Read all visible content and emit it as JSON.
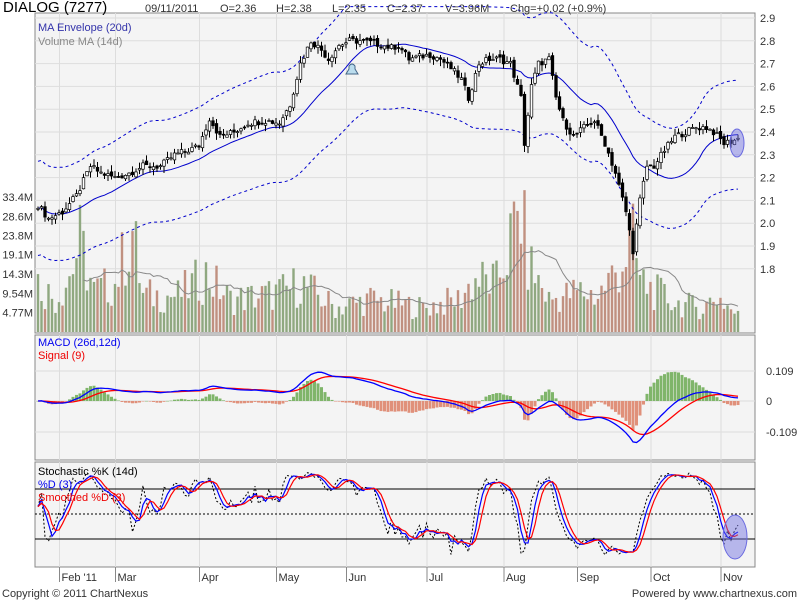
{
  "header": {
    "symbol": "DIALOG (7277)",
    "date": "09/11/2011",
    "open": "O=2.36",
    "high": "H=2.38",
    "low": "L=2.35",
    "close": "C=2.37",
    "volume": "V=3.96M",
    "change": "Chg=+0.02 (+0.9%)"
  },
  "footer": {
    "copyright": "Copyright © 2011 ChartNexus",
    "powered": "Powered by www.chartnexus.com"
  },
  "colors": {
    "up": "#ffffff",
    "down": "#000000",
    "ma": "#0000cc",
    "macd": "#0000ff",
    "signal": "#ff0000",
    "hist_pos": "#7fb56a",
    "hist_neg": "#e0907a",
    "vol_up": "#8fa880",
    "vol_down": "#c09080",
    "vol_ma": "#888888",
    "highlight": "#6a6ae0"
  },
  "chart_data": [
    {
      "type": "candlestick",
      "title": "DIALOG (7277)",
      "legend": [
        "MA Envelope (20d)",
        "Volume MA (14d)"
      ],
      "y_ticks": [
        "2.9",
        "2.8",
        "2.7",
        "2.6",
        "2.5",
        "2.4",
        "2.3",
        "2.2",
        "2.1",
        "2.0",
        "1.9",
        "1.8"
      ],
      "ylim": [
        1.7,
        2.9
      ],
      "volume_ticks": [
        "33.4M",
        "28.6M",
        "23.8M",
        "19.1M",
        "14.3M",
        "9.54M",
        "4.77M"
      ],
      "volume_unit_M": 4.77,
      "x_ticks": [
        "Feb '11",
        "Mar",
        "Apr",
        "May",
        "Jun",
        "Jul",
        "Aug",
        "Sep",
        "Oct",
        "Nov"
      ],
      "x_tick_day_index": [
        7,
        23,
        47,
        69,
        89,
        112,
        134,
        155,
        176,
        196
      ],
      "trading_days": 201,
      "close_keypoints_day_price": [
        [
          0,
          2.08
        ],
        [
          3,
          2.02
        ],
        [
          7,
          2.05
        ],
        [
          11,
          2.12
        ],
        [
          15,
          2.25
        ],
        [
          18,
          2.22
        ],
        [
          22,
          2.2
        ],
        [
          26,
          2.22
        ],
        [
          30,
          2.25
        ],
        [
          35,
          2.25
        ],
        [
          39,
          2.3
        ],
        [
          43,
          2.32
        ],
        [
          46,
          2.34
        ],
        [
          49,
          2.46
        ],
        [
          52,
          2.38
        ],
        [
          56,
          2.4
        ],
        [
          60,
          2.44
        ],
        [
          65,
          2.45
        ],
        [
          69,
          2.44
        ],
        [
          72,
          2.52
        ],
        [
          75,
          2.7
        ],
        [
          78,
          2.8
        ],
        [
          81,
          2.76
        ],
        [
          83,
          2.72
        ],
        [
          86,
          2.78
        ],
        [
          89,
          2.8
        ],
        [
          92,
          2.8
        ],
        [
          96,
          2.79
        ],
        [
          101,
          2.77
        ],
        [
          103,
          2.78
        ],
        [
          106,
          2.72
        ],
        [
          109,
          2.73
        ],
        [
          112,
          2.74
        ],
        [
          115,
          2.72
        ],
        [
          118,
          2.68
        ],
        [
          121,
          2.63
        ],
        [
          123,
          2.55
        ],
        [
          126,
          2.7
        ],
        [
          129,
          2.72
        ],
        [
          132,
          2.72
        ],
        [
          135,
          2.7
        ],
        [
          138,
          2.55
        ],
        [
          139,
          2.35
        ],
        [
          141,
          2.6
        ],
        [
          143,
          2.7
        ],
        [
          146,
          2.72
        ],
        [
          148,
          2.55
        ],
        [
          150,
          2.45
        ],
        [
          153,
          2.38
        ],
        [
          156,
          2.42
        ],
        [
          159,
          2.45
        ],
        [
          162,
          2.35
        ],
        [
          165,
          2.22
        ],
        [
          168,
          2.05
        ],
        [
          170,
          1.88
        ],
        [
          172,
          2.1
        ],
        [
          174,
          2.25
        ],
        [
          176,
          2.25
        ],
        [
          179,
          2.32
        ],
        [
          182,
          2.38
        ],
        [
          185,
          2.4
        ],
        [
          188,
          2.42
        ],
        [
          191,
          2.42
        ],
        [
          193,
          2.4
        ],
        [
          196,
          2.35
        ],
        [
          200,
          2.37
        ]
      ],
      "volume_keypoints_day_M": [
        [
          0,
          12
        ],
        [
          5,
          8
        ],
        [
          9,
          14
        ],
        [
          12,
          22
        ],
        [
          16,
          10
        ],
        [
          22,
          12
        ],
        [
          27,
          25
        ],
        [
          30,
          9
        ],
        [
          40,
          9
        ],
        [
          48,
          14
        ],
        [
          55,
          8
        ],
        [
          65,
          9
        ],
        [
          70,
          10
        ],
        [
          75,
          12
        ],
        [
          85,
          6
        ],
        [
          95,
          8
        ],
        [
          110,
          6
        ],
        [
          120,
          8
        ],
        [
          125,
          13
        ],
        [
          131,
          12
        ],
        [
          138,
          30
        ],
        [
          140,
          17
        ],
        [
          146,
          8
        ],
        [
          155,
          10
        ],
        [
          160,
          9
        ],
        [
          166,
          16
        ],
        [
          170,
          22
        ],
        [
          172,
          13
        ],
        [
          176,
          10
        ],
        [
          183,
          7
        ],
        [
          190,
          6
        ],
        [
          194,
          9
        ],
        [
          200,
          3.96
        ]
      ],
      "indicators": [
        {
          "type": "macd",
          "legend": [
            "MACD (26d,12d)",
            "Signal (9)"
          ],
          "y_ticks": [
            "0.109",
            "0",
            "-0.109"
          ]
        },
        {
          "type": "stochastic",
          "legend": [
            "Stochastic %K (14d)",
            "%D (3)",
            "Smoothed %D (3)"
          ],
          "levels": [
            80,
            50,
            20
          ]
        }
      ]
    }
  ]
}
